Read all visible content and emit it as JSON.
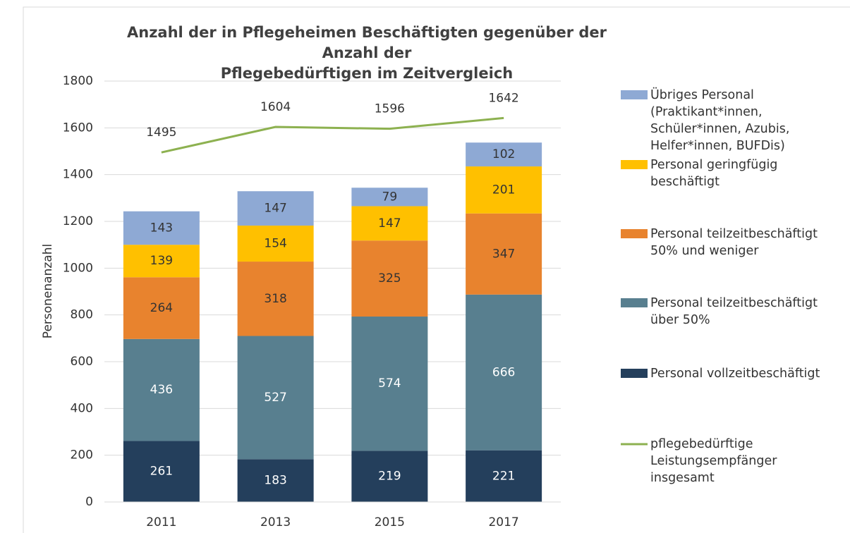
{
  "chart_data": {
    "type": "bar",
    "stacked": true,
    "title": "Anzahl der in Pflegeheimen Beschäftigten gegenüber der Anzahl der\nPflegebedürftigen im Zeitvergleich",
    "y_label": "Personenanzahl",
    "categories": [
      "2011",
      "2013",
      "2015",
      "2017"
    ],
    "ylim": [
      0,
      1800
    ],
    "yticks": [
      0,
      200,
      400,
      600,
      800,
      1000,
      1200,
      1400,
      1600,
      1800
    ],
    "grid": true,
    "legend": "right",
    "series": [
      {
        "name": "Personal vollzeitbeschäftigt",
        "color": "#243f5c",
        "values": [
          261,
          183,
          219,
          221
        ]
      },
      {
        "name": "Personal teilzeitbeschäftigt\nüber 50%",
        "color": "#587f8f",
        "values": [
          436,
          527,
          574,
          666
        ]
      },
      {
        "name": "Personal teilzeitbeschäftigt\n50% und weniger",
        "color": "#e8832e",
        "values": [
          264,
          318,
          325,
          347
        ]
      },
      {
        "name": "Personal  geringfügig\nbeschäftigt",
        "color": "#ffc000",
        "values": [
          139,
          154,
          147,
          201
        ]
      },
      {
        "name": "Übriges Personal\n(Praktikant*innen,\nSchüler*innen, Azubis,\nHelfer*innen, BUFDis)",
        "color": "#8ea9d4",
        "values": [
          143,
          147,
          79,
          102
        ]
      },
      {
        "name": "pflegebedürftige\nLeistungsempfänger\ninsgesamt",
        "color": "#8db150",
        "type": "line",
        "values": [
          1495,
          1604,
          1596,
          1642
        ]
      }
    ]
  }
}
